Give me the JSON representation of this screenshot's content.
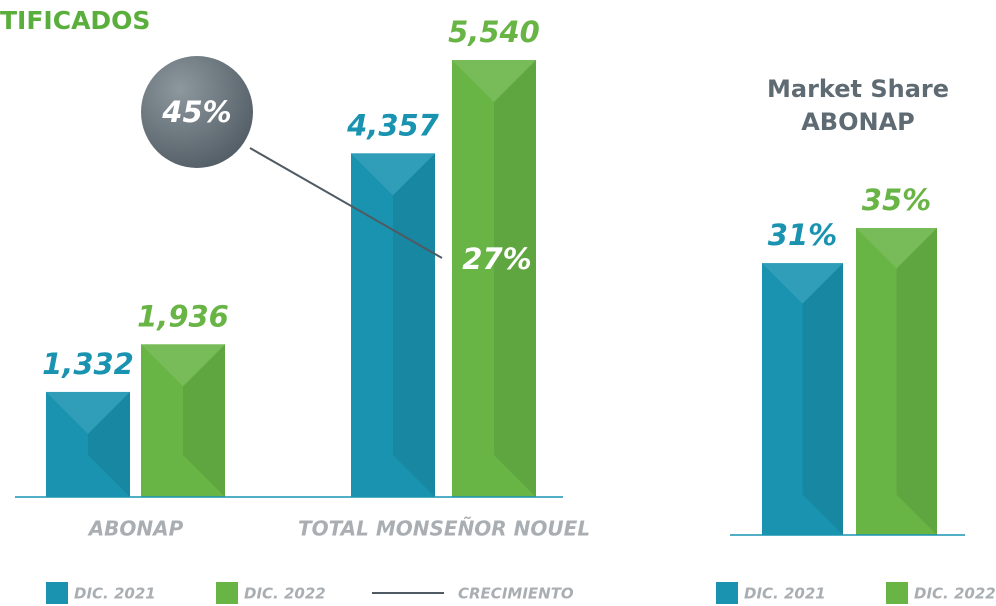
{
  "chart_data": [
    {
      "type": "bar",
      "title": "TIFICADOS",
      "categories": [
        "ABONAP",
        "TOTAL MONSEÑOR NOUEL"
      ],
      "series": [
        {
          "name": "DIC. 2021",
          "color": "#1993b0",
          "values": [
            1332,
            4357
          ],
          "value_labels": [
            "1,332",
            "4,357"
          ]
        },
        {
          "name": "DIC. 2022",
          "color": "#68b546",
          "values": [
            1936,
            5540
          ],
          "value_labels": [
            "1,936",
            "5,540"
          ]
        }
      ],
      "annotations": [
        "45%",
        "27%"
      ],
      "line_legend": "CRECIMIENTO"
    },
    {
      "type": "bar",
      "title": [
        "Market Share",
        "ABONAP"
      ],
      "series": [
        {
          "name": "DIC. 2021",
          "color": "#1993b0",
          "values": [
            31
          ],
          "value_labels": [
            "31%"
          ]
        },
        {
          "name": "DIC. 2022",
          "color": "#68b546",
          "values": [
            35
          ],
          "value_labels": [
            "35%"
          ]
        }
      ]
    }
  ]
}
